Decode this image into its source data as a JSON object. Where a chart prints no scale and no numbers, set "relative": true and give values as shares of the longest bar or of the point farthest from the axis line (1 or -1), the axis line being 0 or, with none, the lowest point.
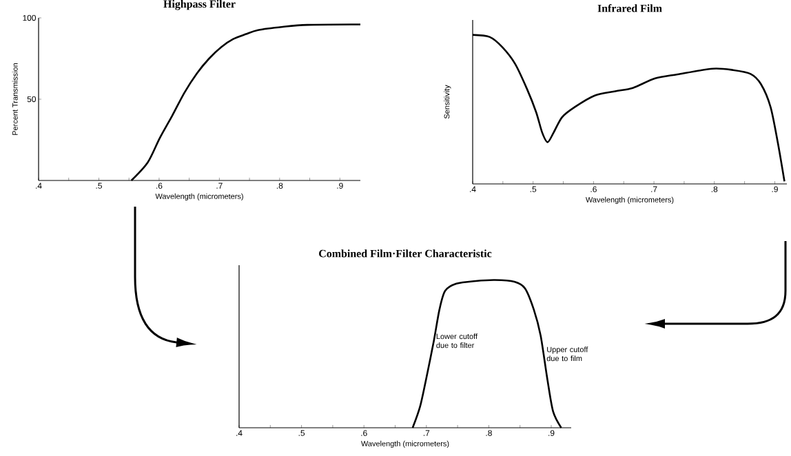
{
  "chart_data": [
    {
      "type": "line",
      "title": "Highpass Filter",
      "xlabel": "Wavelength (micrometers)",
      "ylabel": "Percent Transmission",
      "color": "#000000",
      "x": [
        0.554,
        0.581,
        0.601,
        0.622,
        0.642,
        0.663,
        0.683,
        0.703,
        0.723,
        0.744,
        0.764,
        0.805,
        0.846,
        0.934
      ],
      "values": [
        0,
        11,
        26,
        40,
        54,
        66,
        75,
        82,
        87,
        90,
        92.5,
        94.5,
        95.7,
        96
      ],
      "xlim": [
        0.4,
        0.934
      ],
      "ylim": [
        0,
        100
      ],
      "xticks": [
        {
          "value": 0.4,
          "label": ".4"
        },
        {
          "value": 0.45,
          "label": null
        },
        {
          "value": 0.5,
          "label": ".5"
        },
        {
          "value": 0.55,
          "label": null
        },
        {
          "value": 0.6,
          "label": ".6"
        },
        {
          "value": 0.65,
          "label": null
        },
        {
          "value": 0.7,
          "label": ".7"
        },
        {
          "value": 0.75,
          "label": null
        },
        {
          "value": 0.8,
          "label": ".8"
        },
        {
          "value": 0.85,
          "label": null
        },
        {
          "value": 0.9,
          "label": ".9"
        }
      ],
      "yticks": [
        50,
        100
      ]
    },
    {
      "type": "line",
      "title": "Infrared Film",
      "xlabel": "Wavelength (micrometers)",
      "ylabel": "Sensitivity",
      "color": "#000000",
      "relative": true,
      "x": [
        0.4,
        0.428,
        0.449,
        0.47,
        0.49,
        0.505,
        0.515,
        0.524,
        0.534,
        0.548,
        0.569,
        0.602,
        0.636,
        0.665,
        0.702,
        0.739,
        0.797,
        0.831,
        0.86,
        0.877,
        0.893,
        0.905,
        0.916
      ],
      "values": [
        1.0,
        0.986,
        0.918,
        0.807,
        0.636,
        0.482,
        0.345,
        0.28,
        0.345,
        0.448,
        0.516,
        0.593,
        0.622,
        0.644,
        0.708,
        0.735,
        0.773,
        0.764,
        0.738,
        0.67,
        0.516,
        0.277,
        0.017
      ],
      "xlim": [
        0.4,
        0.92
      ],
      "xticks": [
        {
          "value": 0.4,
          "label": ".4"
        },
        {
          "value": 0.45,
          "label": null
        },
        {
          "value": 0.5,
          "label": ".5"
        },
        {
          "value": 0.55,
          "label": null
        },
        {
          "value": 0.6,
          "label": ".6"
        },
        {
          "value": 0.65,
          "label": null
        },
        {
          "value": 0.7,
          "label": ".7"
        },
        {
          "value": 0.75,
          "label": null
        },
        {
          "value": 0.8,
          "label": ".8"
        },
        {
          "value": 0.85,
          "label": null
        },
        {
          "value": 0.9,
          "label": ".9"
        }
      ]
    },
    {
      "type": "line",
      "title": "Combined Film·Filter Characteristic",
      "xlabel": "Wavelength (micrometers)",
      "color": "#000000",
      "relative": true,
      "x": [
        0.678,
        0.69,
        0.701,
        0.712,
        0.721,
        0.73,
        0.748,
        0.779,
        0.81,
        0.841,
        0.858,
        0.872,
        0.883,
        0.894,
        0.903,
        0.916
      ],
      "values": [
        0,
        0.145,
        0.358,
        0.589,
        0.801,
        0.926,
        0.975,
        0.993,
        1.0,
        0.988,
        0.943,
        0.801,
        0.624,
        0.323,
        0.11,
        0
      ],
      "xlim": [
        0.4,
        0.932
      ],
      "xticks": [
        {
          "value": 0.4,
          "label": ".4"
        },
        {
          "value": 0.45,
          "label": null
        },
        {
          "value": 0.5,
          "label": ".5"
        },
        {
          "value": 0.55,
          "label": null
        },
        {
          "value": 0.6,
          "label": ".6"
        },
        {
          "value": 0.65,
          "label": null
        },
        {
          "value": 0.7,
          "label": ".7"
        },
        {
          "value": 0.75,
          "label": null
        },
        {
          "value": 0.8,
          "label": ".8"
        },
        {
          "value": 0.85,
          "label": null
        },
        {
          "value": 0.9,
          "label": ".9"
        }
      ],
      "annotations": [
        {
          "text": "Lower cutoff due to filter",
          "x": 0.712,
          "y": 0.589
        },
        {
          "text": "Upper cutoff due to film",
          "x": 0.889,
          "y": 0.5
        }
      ]
    }
  ]
}
